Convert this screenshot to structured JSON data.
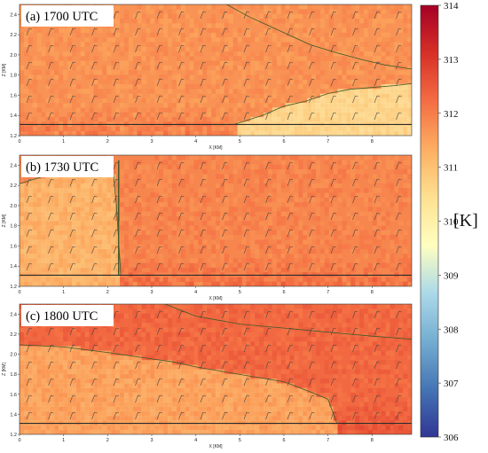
{
  "chart_data": {
    "type": "heatmap",
    "variable_unit": "[K]",
    "colorbar": {
      "min": 306,
      "max": 314,
      "ticks": [
        306,
        307,
        308,
        309,
        310,
        311,
        312,
        313,
        314
      ],
      "colormap": [
        "#313695",
        "#4575b4",
        "#74add1",
        "#abd9e9",
        "#ffffbf",
        "#fee090",
        "#fdae61",
        "#f46d43",
        "#d73027",
        "#a50026"
      ]
    },
    "xlabel": "X [KM]",
    "ylabel": "Z [KM]",
    "xlim": [
      0,
      8.9
    ],
    "ylim": [
      1.2,
      2.5
    ],
    "xticks": [
      0,
      1,
      2,
      3,
      4,
      5,
      6,
      7,
      8
    ],
    "yticks": [
      1.2,
      1.4,
      1.6,
      1.8,
      2.0,
      2.2,
      2.4
    ],
    "panels": [
      {
        "label": "(a) 1700 UTC",
        "background_k": 311.7,
        "cool_region": {
          "x": [
            4.9,
            5.5,
            6.0,
            6.5,
            7.0,
            7.5,
            8.0,
            8.5,
            8.9
          ],
          "top_z": [
            1.31,
            1.4,
            1.5,
            1.55,
            1.62,
            1.66,
            1.68,
            1.7,
            1.72
          ],
          "theta_k": 310.2
        },
        "upper_contour": {
          "x": [
            4.7,
            5.2,
            5.6,
            6.0,
            6.6,
            7.2,
            7.8,
            8.3,
            8.9
          ],
          "z": [
            2.5,
            2.38,
            2.3,
            2.22,
            2.1,
            2.02,
            1.95,
            1.9,
            1.86
          ]
        }
      },
      {
        "label": "(b) 1730 UTC",
        "background_k": 311.9,
        "cool_region": {
          "x": [
            0,
            0.5,
            1.0,
            1.5,
            1.9,
            2.1,
            2.2,
            2.3
          ],
          "top_z": [
            2.22,
            2.28,
            2.33,
            2.38,
            2.42,
            2.45,
            2.0,
            1.31
          ],
          "theta_k": 311.0
        },
        "front_x": 2.25
      },
      {
        "label": "(c) 1800 UTC",
        "background_k": 312.3,
        "cool_region": {
          "x": [
            0,
            1.0,
            2.0,
            3.0,
            3.5,
            4.0,
            5.0,
            6.0,
            6.5,
            7.0,
            7.2
          ],
          "top_z": [
            2.1,
            2.08,
            2.02,
            1.95,
            1.92,
            1.88,
            1.8,
            1.72,
            1.64,
            1.55,
            1.31
          ],
          "theta_k": 311.2
        },
        "upper_contour": {
          "x": [
            3.3,
            4.0,
            5.0,
            6.0,
            7.0,
            8.0,
            8.9
          ],
          "z": [
            2.5,
            2.38,
            2.3,
            2.26,
            2.22,
            2.18,
            2.15
          ]
        }
      }
    ]
  }
}
